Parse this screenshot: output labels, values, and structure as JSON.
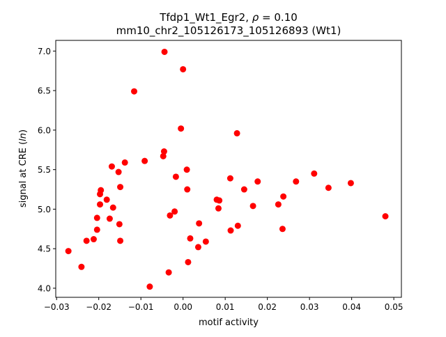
{
  "chart_data": {
    "type": "scatter",
    "title_line1_prefix": "Tfdp1_Wt1_Egr2, ",
    "title_rho_symbol": "ρ",
    "title_rho_value": " = 0.10",
    "title_line2": "mm10_chr2_105126173_105126893 (Wt1)",
    "xlabel": "motif activity",
    "ylabel_prefix": "signal at CRE (",
    "ylabel_italic": "ln",
    "ylabel_suffix": ")",
    "xlim": [
      -0.0302,
      0.0518
    ],
    "ylim": [
      3.885,
      7.135
    ],
    "xticks": [
      -0.03,
      -0.02,
      -0.01,
      0.0,
      0.01,
      0.02,
      0.03,
      0.04,
      0.05
    ],
    "xtick_labels": [
      "−0.03",
      "−0.02",
      "−0.01",
      "0.00",
      "0.01",
      "0.02",
      "0.03",
      "0.04",
      "0.05"
    ],
    "yticks": [
      4.0,
      4.5,
      5.0,
      5.5,
      6.0,
      6.5,
      7.0
    ],
    "ytick_labels": [
      "4.0",
      "4.5",
      "5.0",
      "5.5",
      "6.0",
      "6.5",
      "7.0"
    ],
    "grid": false,
    "marker_color": "#ff0000",
    "points": [
      {
        "x": -0.0272,
        "y": 4.47
      },
      {
        "x": -0.0241,
        "y": 4.27
      },
      {
        "x": -0.0229,
        "y": 4.6
      },
      {
        "x": -0.0212,
        "y": 4.62
      },
      {
        "x": -0.0204,
        "y": 4.89
      },
      {
        "x": -0.0204,
        "y": 4.74
      },
      {
        "x": -0.0197,
        "y": 5.19
      },
      {
        "x": -0.0197,
        "y": 5.06
      },
      {
        "x": -0.0195,
        "y": 5.24
      },
      {
        "x": -0.0181,
        "y": 5.12
      },
      {
        "x": -0.0174,
        "y": 4.88
      },
      {
        "x": -0.0169,
        "y": 5.54
      },
      {
        "x": -0.0166,
        "y": 5.02
      },
      {
        "x": -0.0153,
        "y": 5.47
      },
      {
        "x": -0.0151,
        "y": 4.81
      },
      {
        "x": -0.0149,
        "y": 5.28
      },
      {
        "x": -0.0149,
        "y": 4.6
      },
      {
        "x": -0.0138,
        "y": 5.59
      },
      {
        "x": -0.0116,
        "y": 6.49
      },
      {
        "x": -0.0091,
        "y": 5.61
      },
      {
        "x": -0.0079,
        "y": 4.02
      },
      {
        "x": -0.0047,
        "y": 5.67
      },
      {
        "x": -0.0045,
        "y": 5.73
      },
      {
        "x": -0.0044,
        "y": 6.99
      },
      {
        "x": -0.0034,
        "y": 4.2
      },
      {
        "x": -0.0031,
        "y": 4.92
      },
      {
        "x": -0.002,
        "y": 4.97
      },
      {
        "x": -0.0017,
        "y": 5.41
      },
      {
        "x": -0.0005,
        "y": 6.02
      },
      {
        "x": 0.0,
        "y": 6.77
      },
      {
        "x": 0.0009,
        "y": 5.5
      },
      {
        "x": 0.001,
        "y": 5.25
      },
      {
        "x": 0.0012,
        "y": 4.33
      },
      {
        "x": 0.0017,
        "y": 4.63
      },
      {
        "x": 0.0036,
        "y": 4.52
      },
      {
        "x": 0.0038,
        "y": 4.82
      },
      {
        "x": 0.0054,
        "y": 4.59
      },
      {
        "x": 0.008,
        "y": 5.12
      },
      {
        "x": 0.0084,
        "y": 5.01
      },
      {
        "x": 0.0086,
        "y": 5.11
      },
      {
        "x": 0.0112,
        "y": 5.39
      },
      {
        "x": 0.0113,
        "y": 4.73
      },
      {
        "x": 0.0128,
        "y": 5.96
      },
      {
        "x": 0.013,
        "y": 4.79
      },
      {
        "x": 0.0145,
        "y": 5.25
      },
      {
        "x": 0.0166,
        "y": 5.04
      },
      {
        "x": 0.0177,
        "y": 5.35
      },
      {
        "x": 0.0226,
        "y": 5.06
      },
      {
        "x": 0.0236,
        "y": 4.75
      },
      {
        "x": 0.0238,
        "y": 5.16
      },
      {
        "x": 0.0268,
        "y": 5.35
      },
      {
        "x": 0.0311,
        "y": 5.45
      },
      {
        "x": 0.0345,
        "y": 5.27
      },
      {
        "x": 0.0398,
        "y": 5.33
      },
      {
        "x": 0.048,
        "y": 4.91
      }
    ]
  }
}
